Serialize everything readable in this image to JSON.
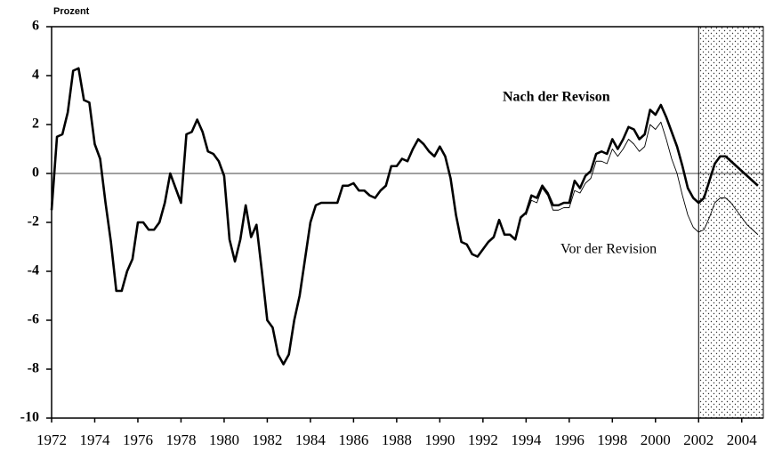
{
  "chart_data": {
    "type": "line",
    "ylabel": "Prozent",
    "x": [
      1972,
      1972.25,
      1972.5,
      1972.75,
      1973,
      1973.25,
      1973.5,
      1973.75,
      1974,
      1974.25,
      1974.5,
      1974.75,
      1975,
      1975.25,
      1975.5,
      1975.75,
      1976,
      1976.25,
      1976.5,
      1976.75,
      1977,
      1977.25,
      1977.5,
      1977.75,
      1978,
      1978.25,
      1978.5,
      1978.75,
      1979,
      1979.25,
      1979.5,
      1979.75,
      1980,
      1980.25,
      1980.5,
      1980.75,
      1981,
      1981.25,
      1981.5,
      1981.75,
      1982,
      1982.25,
      1982.5,
      1982.75,
      1983,
      1983.25,
      1983.5,
      1983.75,
      1984,
      1984.25,
      1984.5,
      1984.75,
      1985,
      1985.25,
      1985.5,
      1985.75,
      1986,
      1986.25,
      1986.5,
      1986.75,
      1987,
      1987.25,
      1987.5,
      1987.75,
      1988,
      1988.25,
      1988.5,
      1988.75,
      1989,
      1989.25,
      1989.5,
      1989.75,
      1990,
      1990.25,
      1990.5,
      1990.75,
      1991,
      1991.25,
      1991.5,
      1991.75,
      1992,
      1992.25,
      1992.5,
      1992.75,
      1993,
      1993.25,
      1993.5,
      1993.75,
      1994,
      1994.25,
      1994.5,
      1994.75,
      1995,
      1995.25,
      1995.5,
      1995.75,
      1996,
      1996.25,
      1996.5,
      1996.75,
      1997,
      1997.25,
      1997.5,
      1997.75,
      1998,
      1998.25,
      1998.5,
      1998.75,
      1999,
      1999.25,
      1999.5,
      1999.75,
      2000,
      2000.25,
      2000.5,
      2000.75,
      2001,
      2001.25,
      2001.5,
      2001.75,
      2002,
      2002.25,
      2002.5,
      2002.75,
      2003,
      2003.25,
      2003.5,
      2003.75,
      2004,
      2004.25,
      2004.5,
      2004.75
    ],
    "series": [
      {
        "name": "Nach der Revison",
        "color": "#000000",
        "width": 2.6,
        "values": [
          -1.5,
          1.5,
          1.6,
          2.5,
          4.2,
          4.3,
          3.0,
          2.9,
          1.2,
          0.6,
          -1.2,
          -2.8,
          -4.8,
          -4.8,
          -4.0,
          -3.5,
          -2.0,
          -2.0,
          -2.3,
          -2.3,
          -2.0,
          -1.2,
          0.0,
          -0.6,
          -1.2,
          1.6,
          1.7,
          2.2,
          1.7,
          0.9,
          0.8,
          0.5,
          -0.1,
          -2.7,
          -3.6,
          -2.7,
          -1.3,
          -2.6,
          -2.1,
          -4.0,
          -6.0,
          -6.3,
          -7.4,
          -7.8,
          -7.4,
          -6.0,
          -5.0,
          -3.5,
          -2.0,
          -1.3,
          -1.2,
          -1.2,
          -1.2,
          -1.2,
          -0.5,
          -0.5,
          -0.4,
          -0.7,
          -0.7,
          -0.9,
          -1.0,
          -0.7,
          -0.5,
          0.3,
          0.3,
          0.6,
          0.5,
          1.0,
          1.4,
          1.2,
          0.9,
          0.7,
          1.1,
          0.7,
          -0.2,
          -1.7,
          -2.8,
          -2.9,
          -3.3,
          -3.4,
          -3.1,
          -2.8,
          -2.6,
          -1.9,
          -2.5,
          -2.5,
          -2.7,
          -1.8,
          -1.6,
          -0.9,
          -1.0,
          -0.5,
          -0.8,
          -1.3,
          -1.3,
          -1.2,
          -1.2,
          -0.3,
          -0.6,
          -0.1,
          0.1,
          0.8,
          0.9,
          0.8,
          1.4,
          1.0,
          1.4,
          1.9,
          1.8,
          1.4,
          1.6,
          2.6,
          2.4,
          2.8,
          2.3,
          1.7,
          1.1,
          0.3,
          -0.6,
          -1.0,
          -1.2,
          -1.0,
          -0.3,
          0.4,
          0.7,
          0.7,
          0.5,
          0.3,
          0.1,
          -0.1,
          -0.3,
          -0.5
        ]
      },
      {
        "name": "Vor der Revision",
        "color": "#000000",
        "width": 0.9,
        "values": [
          null,
          null,
          null,
          null,
          null,
          null,
          null,
          null,
          null,
          null,
          null,
          null,
          null,
          null,
          null,
          null,
          null,
          null,
          null,
          null,
          null,
          null,
          null,
          null,
          null,
          null,
          null,
          null,
          null,
          null,
          null,
          null,
          null,
          null,
          null,
          null,
          null,
          null,
          null,
          null,
          null,
          null,
          null,
          null,
          null,
          null,
          null,
          null,
          null,
          null,
          null,
          null,
          null,
          null,
          null,
          null,
          null,
          null,
          null,
          null,
          null,
          null,
          null,
          null,
          null,
          null,
          null,
          null,
          null,
          null,
          null,
          null,
          null,
          null,
          null,
          null,
          null,
          null,
          null,
          null,
          null,
          null,
          null,
          null,
          null,
          null,
          null,
          null,
          -1.7,
          -1.1,
          -1.2,
          -0.6,
          -0.9,
          -1.5,
          -1.5,
          -1.4,
          -1.4,
          -0.7,
          -0.8,
          -0.4,
          -0.2,
          0.5,
          0.5,
          0.4,
          1.0,
          0.7,
          1.0,
          1.4,
          1.2,
          0.9,
          1.1,
          2.0,
          1.8,
          2.1,
          1.4,
          0.6,
          0.0,
          -0.9,
          -1.7,
          -2.2,
          -2.4,
          -2.3,
          -1.8,
          -1.2,
          -1.0,
          -1.0,
          -1.2,
          -1.5,
          -1.8,
          -2.1,
          -2.3,
          -2.5
        ]
      }
    ],
    "xlim": [
      1972,
      2005
    ],
    "xticks": [
      1972,
      1974,
      1976,
      1978,
      1980,
      1982,
      1984,
      1986,
      1988,
      1990,
      1992,
      1994,
      1996,
      1998,
      2000,
      2002,
      2004
    ],
    "ylim": [
      -10,
      6
    ],
    "yticks": [
      -10,
      -8,
      -6,
      -4,
      -2,
      0,
      2,
      4,
      6
    ],
    "shaded_region": [
      2002,
      2005
    ]
  }
}
